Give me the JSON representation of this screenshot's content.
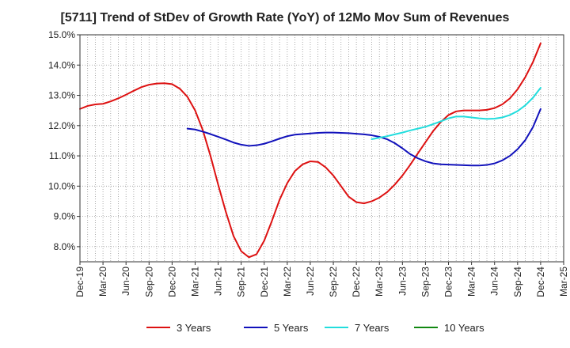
{
  "chart_data": {
    "type": "line",
    "title": "[5711]  Trend of StDev of Growth Rate (YoY) of 12Mo Mov Sum of Revenues",
    "xlabel": "",
    "ylabel": "",
    "ylim": [
      7.5,
      15.0
    ],
    "y_ticks": [
      8.0,
      9.0,
      10.0,
      11.0,
      12.0,
      13.0,
      14.0,
      15.0
    ],
    "y_tick_labels": [
      "8.0%",
      "9.0%",
      "10.0%",
      "11.0%",
      "12.0%",
      "13.0%",
      "14.0%",
      "15.0%"
    ],
    "x_tick_labels": [
      "Dec-19",
      "Mar-20",
      "Jun-20",
      "Sep-20",
      "Dec-20",
      "Mar-21",
      "Jun-21",
      "Sep-21",
      "Dec-21",
      "Mar-22",
      "Jun-22",
      "Sep-22",
      "Dec-22",
      "Mar-23",
      "Jun-23",
      "Sep-23",
      "Dec-23",
      "Mar-24",
      "Jun-24",
      "Sep-24",
      "Dec-24",
      "Mar-25"
    ],
    "x_range_months": [
      0,
      63
    ],
    "grid": true,
    "legend_position": "bottom",
    "series": [
      {
        "name": "3 Years",
        "color": "#dd1111",
        "x": [
          0,
          1,
          2,
          3,
          4,
          5,
          6,
          7,
          8,
          9,
          10,
          11,
          12,
          13,
          14,
          15,
          16,
          17,
          18,
          19,
          20,
          21,
          22,
          23,
          24,
          25,
          26,
          27,
          28,
          29,
          30,
          31,
          32,
          33,
          34,
          35,
          36,
          37,
          38,
          39,
          40,
          41,
          42,
          43,
          44,
          45,
          46,
          47,
          48,
          49,
          50,
          51,
          52,
          53,
          54,
          55,
          56,
          57,
          58,
          59,
          60
        ],
        "values": [
          12.55,
          12.65,
          12.7,
          12.72,
          12.8,
          12.9,
          13.02,
          13.15,
          13.27,
          13.35,
          13.39,
          13.4,
          13.37,
          13.22,
          12.95,
          12.5,
          11.85,
          11.0,
          10.05,
          9.15,
          8.35,
          7.85,
          7.65,
          7.75,
          8.2,
          8.85,
          9.55,
          10.1,
          10.5,
          10.72,
          10.82,
          10.8,
          10.62,
          10.35,
          10.0,
          9.65,
          9.47,
          9.43,
          9.5,
          9.62,
          9.8,
          10.05,
          10.35,
          10.7,
          11.08,
          11.45,
          11.82,
          12.12,
          12.35,
          12.47,
          12.5,
          12.5,
          12.5,
          12.52,
          12.58,
          12.7,
          12.9,
          13.2,
          13.6,
          14.1,
          14.72
        ]
      },
      {
        "name": "5 Years",
        "color": "#1111bb",
        "x": [
          14,
          15,
          16,
          17,
          18,
          19,
          20,
          21,
          22,
          23,
          24,
          25,
          26,
          27,
          28,
          29,
          30,
          31,
          32,
          33,
          34,
          35,
          36,
          37,
          38,
          39,
          40,
          41,
          42,
          43,
          44,
          45,
          46,
          47,
          48,
          49,
          50,
          51,
          52,
          53,
          54,
          55,
          56,
          57,
          58,
          59,
          60
        ],
        "values": [
          11.9,
          11.87,
          11.8,
          11.72,
          11.63,
          11.54,
          11.44,
          11.37,
          11.33,
          11.35,
          11.4,
          11.48,
          11.57,
          11.65,
          11.7,
          11.72,
          11.74,
          11.76,
          11.77,
          11.77,
          11.76,
          11.75,
          11.73,
          11.71,
          11.68,
          11.63,
          11.55,
          11.42,
          11.25,
          11.06,
          10.92,
          10.82,
          10.75,
          10.72,
          10.71,
          10.7,
          10.69,
          10.68,
          10.68,
          10.7,
          10.75,
          10.85,
          11.0,
          11.22,
          11.52,
          11.95,
          12.55
        ]
      },
      {
        "name": "7 Years",
        "color": "#22dddd",
        "x": [
          38,
          39,
          40,
          41,
          42,
          43,
          44,
          45,
          46,
          47,
          48,
          49,
          50,
          51,
          52,
          53,
          54,
          55,
          56,
          57,
          58,
          59,
          60
        ],
        "values": [
          11.55,
          11.6,
          11.65,
          11.71,
          11.77,
          11.84,
          11.9,
          11.96,
          12.05,
          12.14,
          12.24,
          12.3,
          12.3,
          12.27,
          12.24,
          12.22,
          12.23,
          12.27,
          12.35,
          12.48,
          12.67,
          12.92,
          13.25
        ]
      },
      {
        "name": "10 Years",
        "color": "#118811",
        "x": [],
        "values": []
      }
    ]
  }
}
